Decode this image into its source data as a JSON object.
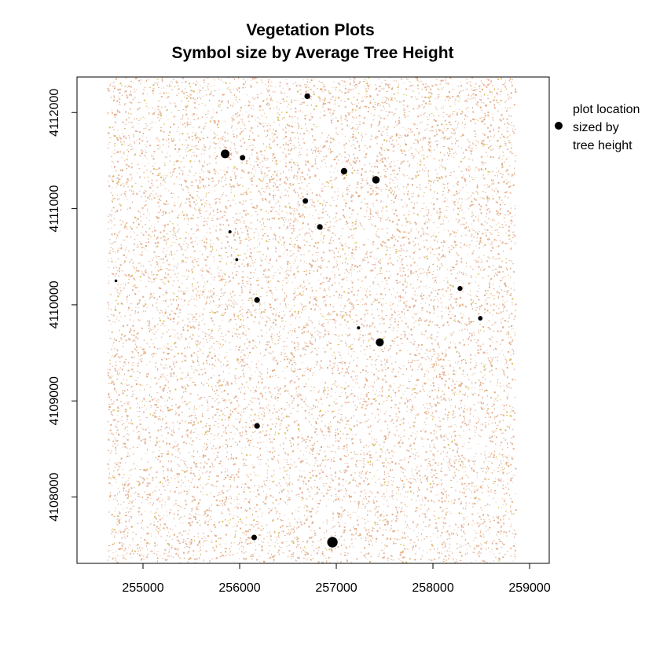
{
  "chart_data": {
    "type": "scatter",
    "title": "Vegetation Plots",
    "subtitle": "Symbol size by Average Tree Height",
    "xlabel": "",
    "ylabel": "",
    "xlim": [
      254317,
      259203
    ],
    "ylim": [
      4107310,
      4112370
    ],
    "x_ticks": [
      255000,
      256000,
      257000,
      258000,
      259000
    ],
    "y_ticks": [
      4108000,
      4109000,
      4110000,
      4111000,
      4112000
    ],
    "x_tick_labels": [
      "255000",
      "256000",
      "257000",
      "258000",
      "259000"
    ],
    "y_tick_labels": [
      "4108000",
      "4109000",
      "4110000",
      "4111000",
      "4112000"
    ],
    "raster_extent": {
      "x": [
        254630,
        258850
      ],
      "y": [
        4107310,
        4112370
      ]
    },
    "raster_colors": [
      "#e6b79e",
      "#e3ad8e",
      "#d9c05a",
      "#e0a878"
    ],
    "point_color": "#000000",
    "grid": false,
    "legend": {
      "position": "right",
      "lines": [
        "plot location",
        "sized by",
        "tree height"
      ]
    },
    "points": [
      {
        "x": 254720,
        "y": 4110250,
        "height": 0.5
      },
      {
        "x": 255850,
        "y": 4111570,
        "height": 5.5
      },
      {
        "x": 256030,
        "y": 4111530,
        "height": 2.8
      },
      {
        "x": 255900,
        "y": 4110760,
        "height": 0.8
      },
      {
        "x": 255970,
        "y": 4110470,
        "height": 0.7
      },
      {
        "x": 256180,
        "y": 4110050,
        "height": 3.0
      },
      {
        "x": 256700,
        "y": 4112170,
        "height": 3.0
      },
      {
        "x": 257080,
        "y": 4111390,
        "height": 3.6
      },
      {
        "x": 257410,
        "y": 4111300,
        "height": 4.5
      },
      {
        "x": 256680,
        "y": 4111080,
        "height": 2.8
      },
      {
        "x": 256830,
        "y": 4110810,
        "height": 3.0
      },
      {
        "x": 257230,
        "y": 4109760,
        "height": 1.0
      },
      {
        "x": 257450,
        "y": 4109610,
        "height": 5.0
      },
      {
        "x": 258280,
        "y": 4110170,
        "height": 2.3
      },
      {
        "x": 258490,
        "y": 4109860,
        "height": 2.0
      },
      {
        "x": 256180,
        "y": 4108740,
        "height": 3.0
      },
      {
        "x": 256150,
        "y": 4107580,
        "height": 2.8
      },
      {
        "x": 256960,
        "y": 4107530,
        "height": 7.0
      }
    ]
  }
}
